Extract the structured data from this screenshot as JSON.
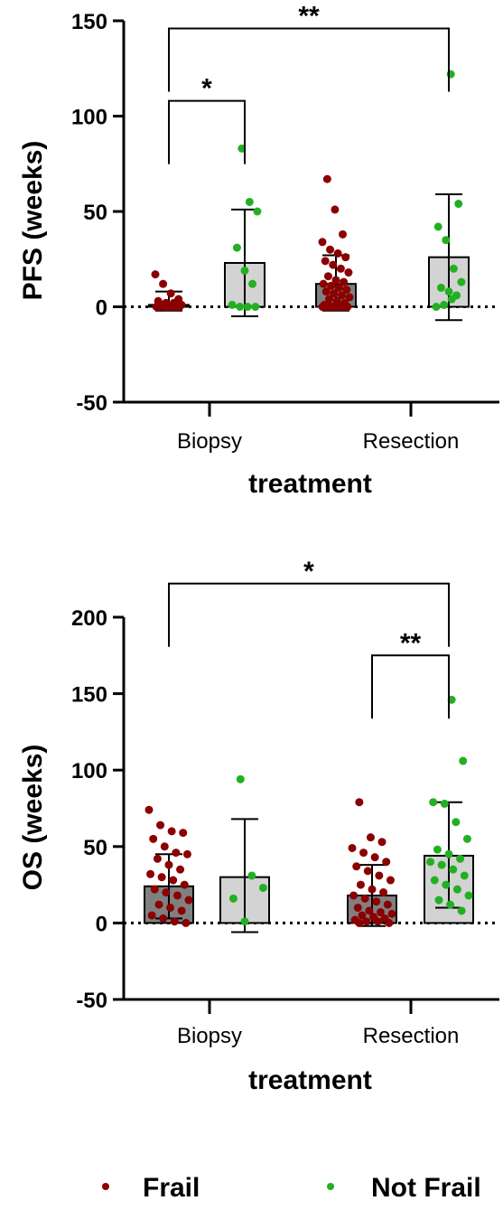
{
  "colors": {
    "frail_point": "#8B0000",
    "not_frail_point": "#22B022",
    "frail_bar": "#808080",
    "not_frail_bar": "#D3D3D3"
  },
  "legend": {
    "items": [
      {
        "label": "Frail",
        "color": "#8B0000"
      },
      {
        "label": "Not Frail",
        "color": "#22B022"
      }
    ]
  },
  "chart_data": [
    {
      "type": "bar",
      "ylabel": "PFS (weeks)",
      "xlabel": "treatment",
      "categories": [
        "Biopsy",
        "Resection"
      ],
      "ylim": [
        -50,
        150
      ],
      "yticks": [
        -50,
        0,
        50,
        100,
        150
      ],
      "zero_line": "dotted",
      "series": [
        {
          "name": "Frail",
          "means": [
            1,
            12
          ],
          "error": [
            [
              -2,
              8
            ],
            [
              -2,
              27
            ]
          ],
          "points": [
            [
              17,
              12,
              7,
              4,
              3,
              2,
              2,
              1,
              1,
              0,
              0,
              0,
              0,
              0,
              0,
              0,
              0,
              0
            ],
            [
              67,
              51,
              38,
              34,
              30,
              28,
              26,
              24,
              22,
              20,
              18,
              16,
              14,
              13,
              12,
              11,
              10,
              9,
              8,
              7,
              6,
              5,
              4,
              3,
              2,
              1,
              0,
              0,
              0,
              0,
              0,
              0,
              0,
              0,
              0,
              0,
              0
            ]
          ]
        },
        {
          "name": "Not Frail",
          "means": [
            23,
            26
          ],
          "error": [
            [
              -5,
              51
            ],
            [
              -7,
              59
            ]
          ],
          "points": [
            [
              83,
              55,
              50,
              31,
              19,
              12,
              1,
              0,
              0,
              0
            ],
            [
              122,
              54,
              42,
              35,
              20,
              13,
              10,
              8,
              6,
              0,
              1,
              4
            ]
          ]
        }
      ],
      "significance": [
        {
          "label": "*",
          "from": "Biopsy-Frail",
          "to": "Biopsy-Not Frail",
          "y": 108
        },
        {
          "label": "**",
          "from": "Biopsy-Frail",
          "to": "Resection-Not Frail",
          "y": 146
        }
      ]
    },
    {
      "type": "bar",
      "ylabel": "OS (weeks)",
      "xlabel": "treatment",
      "categories": [
        "Biopsy",
        "Resection"
      ],
      "ylim": [
        -50,
        200
      ],
      "yticks": [
        -50,
        0,
        50,
        100,
        150,
        200
      ],
      "zero_line": "dotted",
      "series": [
        {
          "name": "Frail",
          "means": [
            24,
            18
          ],
          "error": [
            [
              3,
              45
            ],
            [
              -2,
              38
            ]
          ],
          "points": [
            [
              74,
              64,
              60,
              59,
              55,
              50,
              46,
              45,
              42,
              38,
              35,
              32,
              30,
              28,
              25,
              22,
              20,
              18,
              15,
              12,
              10,
              8,
              5,
              3,
              1,
              0
            ],
            [
              79,
              56,
              53,
              49,
              46,
              43,
              40,
              37,
              34,
              31,
              28,
              25,
              22,
              20,
              18,
              16,
              14,
              12,
              10,
              8,
              7,
              6,
              5,
              4,
              3,
              2,
              1,
              1,
              0,
              0
            ]
          ]
        },
        {
          "name": "Not Frail",
          "means": [
            30,
            44
          ],
          "error": [
            [
              -6,
              68
            ],
            [
              10,
              79
            ]
          ],
          "points": [
            [
              94,
              31,
              23,
              16,
              1
            ],
            [
              146,
              106,
              79,
              78,
              66,
              55,
              48,
              45,
              42,
              40,
              38,
              35,
              31,
              28,
              25,
              22,
              18,
              15,
              12,
              8
            ]
          ]
        }
      ],
      "significance": [
        {
          "label": "*",
          "from": "Biopsy-Frail",
          "to": "Resection-Not Frail",
          "y": 222
        },
        {
          "label": "**",
          "from": "Resection-Frail",
          "to": "Resection-Not Frail",
          "y": 175
        }
      ]
    }
  ]
}
